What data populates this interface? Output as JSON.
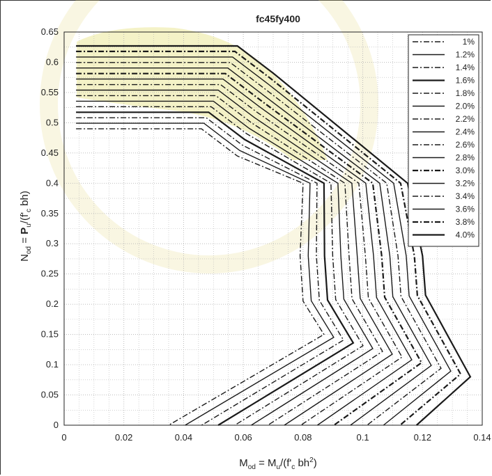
{
  "chart_data": {
    "type": "line",
    "title": "fc45fy400",
    "xlabel": "M_od = M_u/(f'_c bh²)",
    "ylabel": "N_od = P_u/(f'_c bh)",
    "xlim": [
      0,
      0.14
    ],
    "ylim": [
      0,
      0.65
    ],
    "x_ticks": [
      "0",
      "0.02",
      "0.04",
      "0.06",
      "0.08",
      "0.1",
      "0.12",
      "0.14"
    ],
    "y_ticks": [
      "0",
      "0.05",
      "0.1",
      "0.15",
      "0.2",
      "0.25",
      "0.3",
      "0.35",
      "0.4",
      "0.45",
      "0.5",
      "0.55",
      "0.6",
      "0.65"
    ],
    "grid": true,
    "legend_position": "top-right",
    "series": [
      {
        "name": "1%",
        "style": "dashdot"
      },
      {
        "name": "1.2%",
        "style": "solid"
      },
      {
        "name": "1.4%",
        "style": "dashdot"
      },
      {
        "name": "1.6%",
        "style": "solid-bold"
      },
      {
        "name": "1.8%",
        "style": "dashdot"
      },
      {
        "name": "2.0%",
        "style": "solid"
      },
      {
        "name": "2.2%",
        "style": "dashdot"
      },
      {
        "name": "2.4%",
        "style": "solid"
      },
      {
        "name": "2.6%",
        "style": "dashdot"
      },
      {
        "name": "2.8%",
        "style": "solid"
      },
      {
        "name": "3.0%",
        "style": "dashdot-bold"
      },
      {
        "name": "3.2%",
        "style": "solid"
      },
      {
        "name": "3.4%",
        "style": "dashdot"
      },
      {
        "name": "3.6%",
        "style": "solid"
      },
      {
        "name": "3.8%",
        "style": "dashdot-bold"
      },
      {
        "name": "4.0%",
        "style": "solid-bold"
      }
    ],
    "curve_shape": {
      "first": {
        "top_y": 0.49,
        "flat_end_x": 0.046,
        "mid": [
          [
            0.08,
            0.205
          ],
          [
            0.087,
            0.15
          ]
        ],
        "base_x": 0.035
      },
      "last": {
        "top_y": 0.627,
        "flat_end_x": 0.058,
        "mid": [
          [
            0.121,
            0.215
          ],
          [
            0.136,
            0.08
          ]
        ],
        "base_x": 0.118
      }
    }
  },
  "colors": {
    "line": "#1a1a1a",
    "grid": "#b5b5b5",
    "watermark_fill": "#ece89a",
    "watermark_stroke": "#d8cc6a"
  }
}
